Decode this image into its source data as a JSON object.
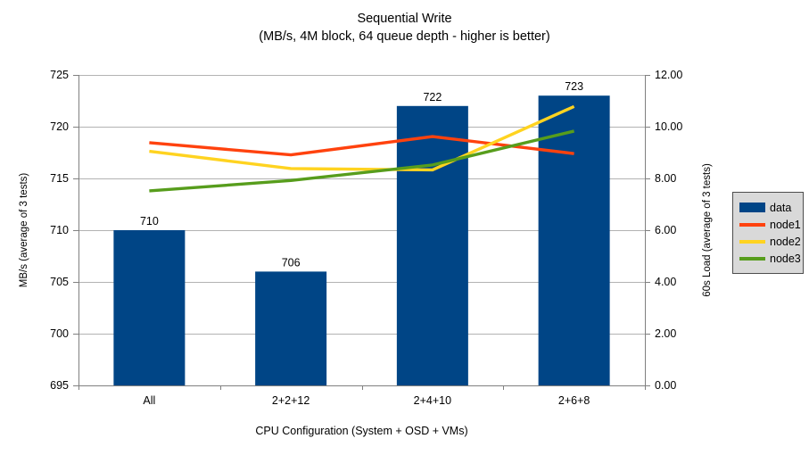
{
  "title": "Sequential Write",
  "subtitle": "(MB/s, 4M block, 64 queue depth - higher is better)",
  "chart_data": {
    "type": "combo-bar-line",
    "categories": [
      "All",
      "2+2+12",
      "2+4+10",
      "2+6+8"
    ],
    "bar_series": {
      "name": "data",
      "axis": "left",
      "values": [
        710,
        706,
        722,
        723
      ],
      "data_labels": [
        "710",
        "706",
        "722",
        "723"
      ],
      "color": "#004586"
    },
    "line_series": [
      {
        "name": "node1",
        "axis": "right",
        "values": [
          9.38,
          8.91,
          9.62,
          8.96
        ],
        "color": "#ff420e"
      },
      {
        "name": "node2",
        "axis": "right",
        "values": [
          9.05,
          8.38,
          8.33,
          10.78
        ],
        "color": "#ffd320"
      },
      {
        "name": "node3",
        "axis": "right",
        "values": [
          7.52,
          7.92,
          8.52,
          9.83
        ],
        "color": "#579d1c"
      }
    ],
    "axes": {
      "x": {
        "title": "CPU Configuration (System + OSD + VMs)"
      },
      "left": {
        "title": "MB/s (average of 3 tests)",
        "min": 695,
        "max": 725,
        "step": 5
      },
      "right": {
        "title": "60s Load (average of 3 tests)",
        "min": 0,
        "max": 12,
        "step": 2,
        "decimals": 2
      }
    },
    "grid": true,
    "legend": {
      "position": "right",
      "items": [
        "data",
        "node1",
        "node2",
        "node3"
      ]
    }
  },
  "colors": {
    "background": "#ffffff",
    "bar": "#004586",
    "gridline": "#b3b3b3",
    "axis": "#808080",
    "text": "#000000",
    "legend_bg": "#d9d9d9",
    "legend_border": "#4d4d4d"
  }
}
